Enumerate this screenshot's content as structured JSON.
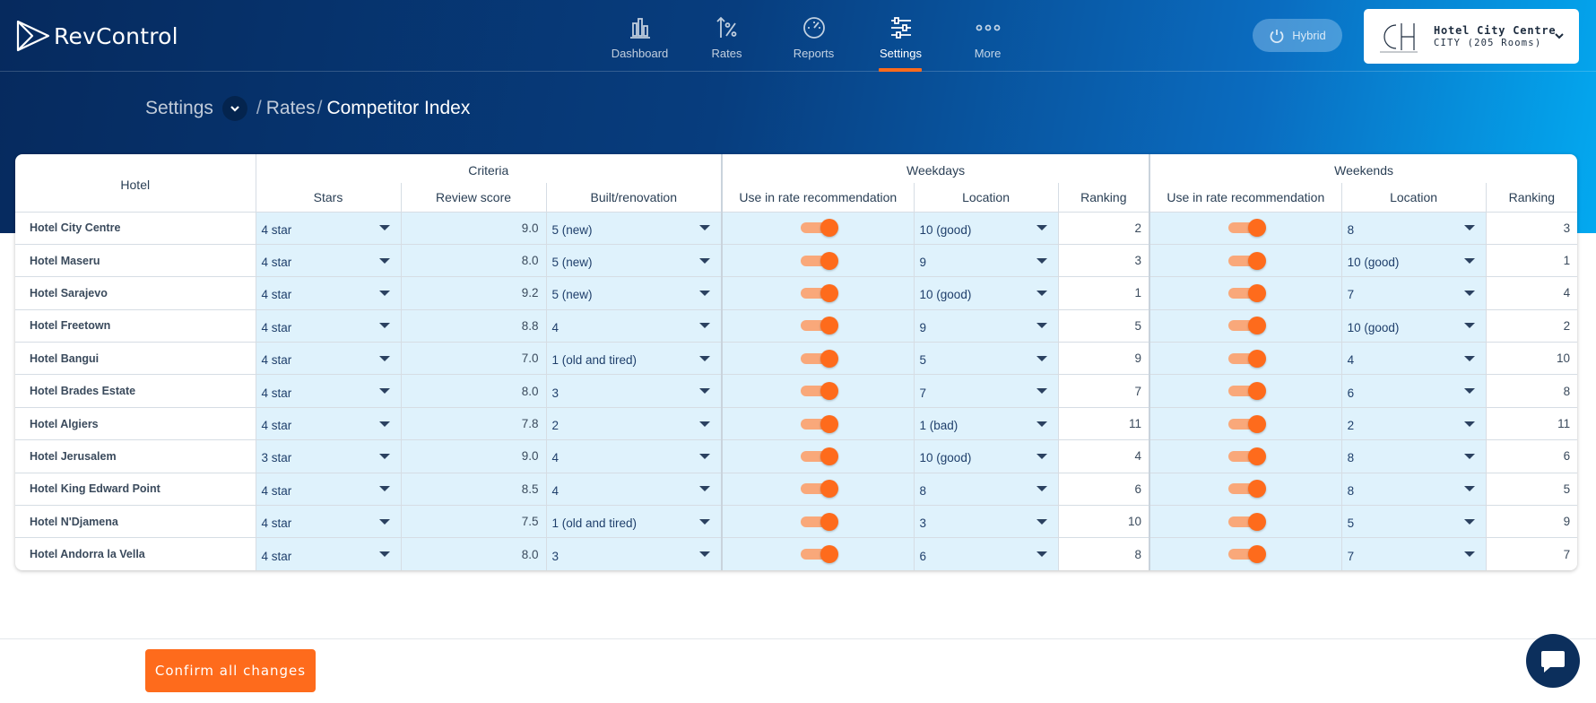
{
  "app": {
    "name": "RevControl"
  },
  "nav": {
    "items": [
      {
        "label": "Dashboard",
        "icon": "bar-chart-icon"
      },
      {
        "label": "Rates",
        "icon": "percent-icon"
      },
      {
        "label": "Reports",
        "icon": "gauge-icon"
      },
      {
        "label": "Settings",
        "icon": "sliders-icon",
        "active": true
      },
      {
        "label": "More",
        "icon": "more-dots-icon"
      }
    ],
    "mode": "Hybrid"
  },
  "hotel_picker": {
    "name": "Hotel City Centre",
    "subtitle": "CITY (205 Rooms)"
  },
  "breadcrumb": {
    "root": "Settings",
    "sep": "/",
    "parent": "Rates",
    "current": "Competitor Index"
  },
  "table": {
    "groups": {
      "hotel": "Hotel",
      "criteria": "Criteria",
      "weekdays": "Weekdays",
      "weekends": "Weekends"
    },
    "columns": {
      "stars": "Stars",
      "review": "Review score",
      "built": "Built/renovation",
      "wd_use": "Use in rate recommendation",
      "wd_location": "Location",
      "wd_ranking": "Ranking",
      "we_use": "Use in rate recommendation",
      "we_location": "Location",
      "we_ranking": "Ranking"
    },
    "rows": [
      {
        "hotel": "Hotel City Centre",
        "stars": "4 star",
        "review": "9.0",
        "built": "5 (new)",
        "wd_use": true,
        "wd_location": "10 (good)",
        "wd_ranking": "2",
        "we_use": true,
        "we_location": "8",
        "we_ranking": "3"
      },
      {
        "hotel": "Hotel Maseru",
        "stars": "4 star",
        "review": "8.0",
        "built": "5 (new)",
        "wd_use": true,
        "wd_location": "9",
        "wd_ranking": "3",
        "we_use": true,
        "we_location": "10 (good)",
        "we_ranking": "1"
      },
      {
        "hotel": "Hotel Sarajevo",
        "stars": "4 star",
        "review": "9.2",
        "built": "5 (new)",
        "wd_use": true,
        "wd_location": "10 (good)",
        "wd_ranking": "1",
        "we_use": true,
        "we_location": "7",
        "we_ranking": "4"
      },
      {
        "hotel": "Hotel Freetown",
        "stars": "4 star",
        "review": "8.8",
        "built": "4",
        "wd_use": true,
        "wd_location": "9",
        "wd_ranking": "5",
        "we_use": true,
        "we_location": "10 (good)",
        "we_ranking": "2"
      },
      {
        "hotel": "Hotel Bangui",
        "stars": "4 star",
        "review": "7.0",
        "built": "1 (old and tired)",
        "wd_use": true,
        "wd_location": "5",
        "wd_ranking": "9",
        "we_use": true,
        "we_location": "4",
        "we_ranking": "10"
      },
      {
        "hotel": "Hotel Brades Estate",
        "stars": "4 star",
        "review": "8.0",
        "built": "3",
        "wd_use": true,
        "wd_location": "7",
        "wd_ranking": "7",
        "we_use": true,
        "we_location": "6",
        "we_ranking": "8"
      },
      {
        "hotel": "Hotel Algiers",
        "stars": "4 star",
        "review": "7.8",
        "built": "2",
        "wd_use": true,
        "wd_location": "1 (bad)",
        "wd_ranking": "11",
        "we_use": true,
        "we_location": "2",
        "we_ranking": "11"
      },
      {
        "hotel": "Hotel Jerusalem",
        "stars": "3 star",
        "review": "9.0",
        "built": "4",
        "wd_use": true,
        "wd_location": "10 (good)",
        "wd_ranking": "4",
        "we_use": true,
        "we_location": "8",
        "we_ranking": "6"
      },
      {
        "hotel": "Hotel King Edward Point",
        "stars": "4 star",
        "review": "8.5",
        "built": "4",
        "wd_use": true,
        "wd_location": "8",
        "wd_ranking": "6",
        "we_use": true,
        "we_location": "8",
        "we_ranking": "5"
      },
      {
        "hotel": "Hotel N'Djamena",
        "stars": "4 star",
        "review": "7.5",
        "built": "1 (old and tired)",
        "wd_use": true,
        "wd_location": "3",
        "wd_ranking": "10",
        "we_use": true,
        "we_location": "5",
        "we_ranking": "9"
      },
      {
        "hotel": "Hotel Andorra la Vella",
        "stars": "4 star",
        "review": "8.0",
        "built": "3",
        "wd_use": true,
        "wd_location": "6",
        "wd_ranking": "8",
        "we_use": true,
        "we_location": "7",
        "we_ranking": "7"
      }
    ]
  },
  "footer": {
    "confirm_label": "Confirm all changes",
    "chat_icon": "chat-bubble-icon"
  },
  "colors": {
    "accent": "#fe6b1c",
    "navy": "#062a5e",
    "cell_blue": "#dff2fc"
  }
}
